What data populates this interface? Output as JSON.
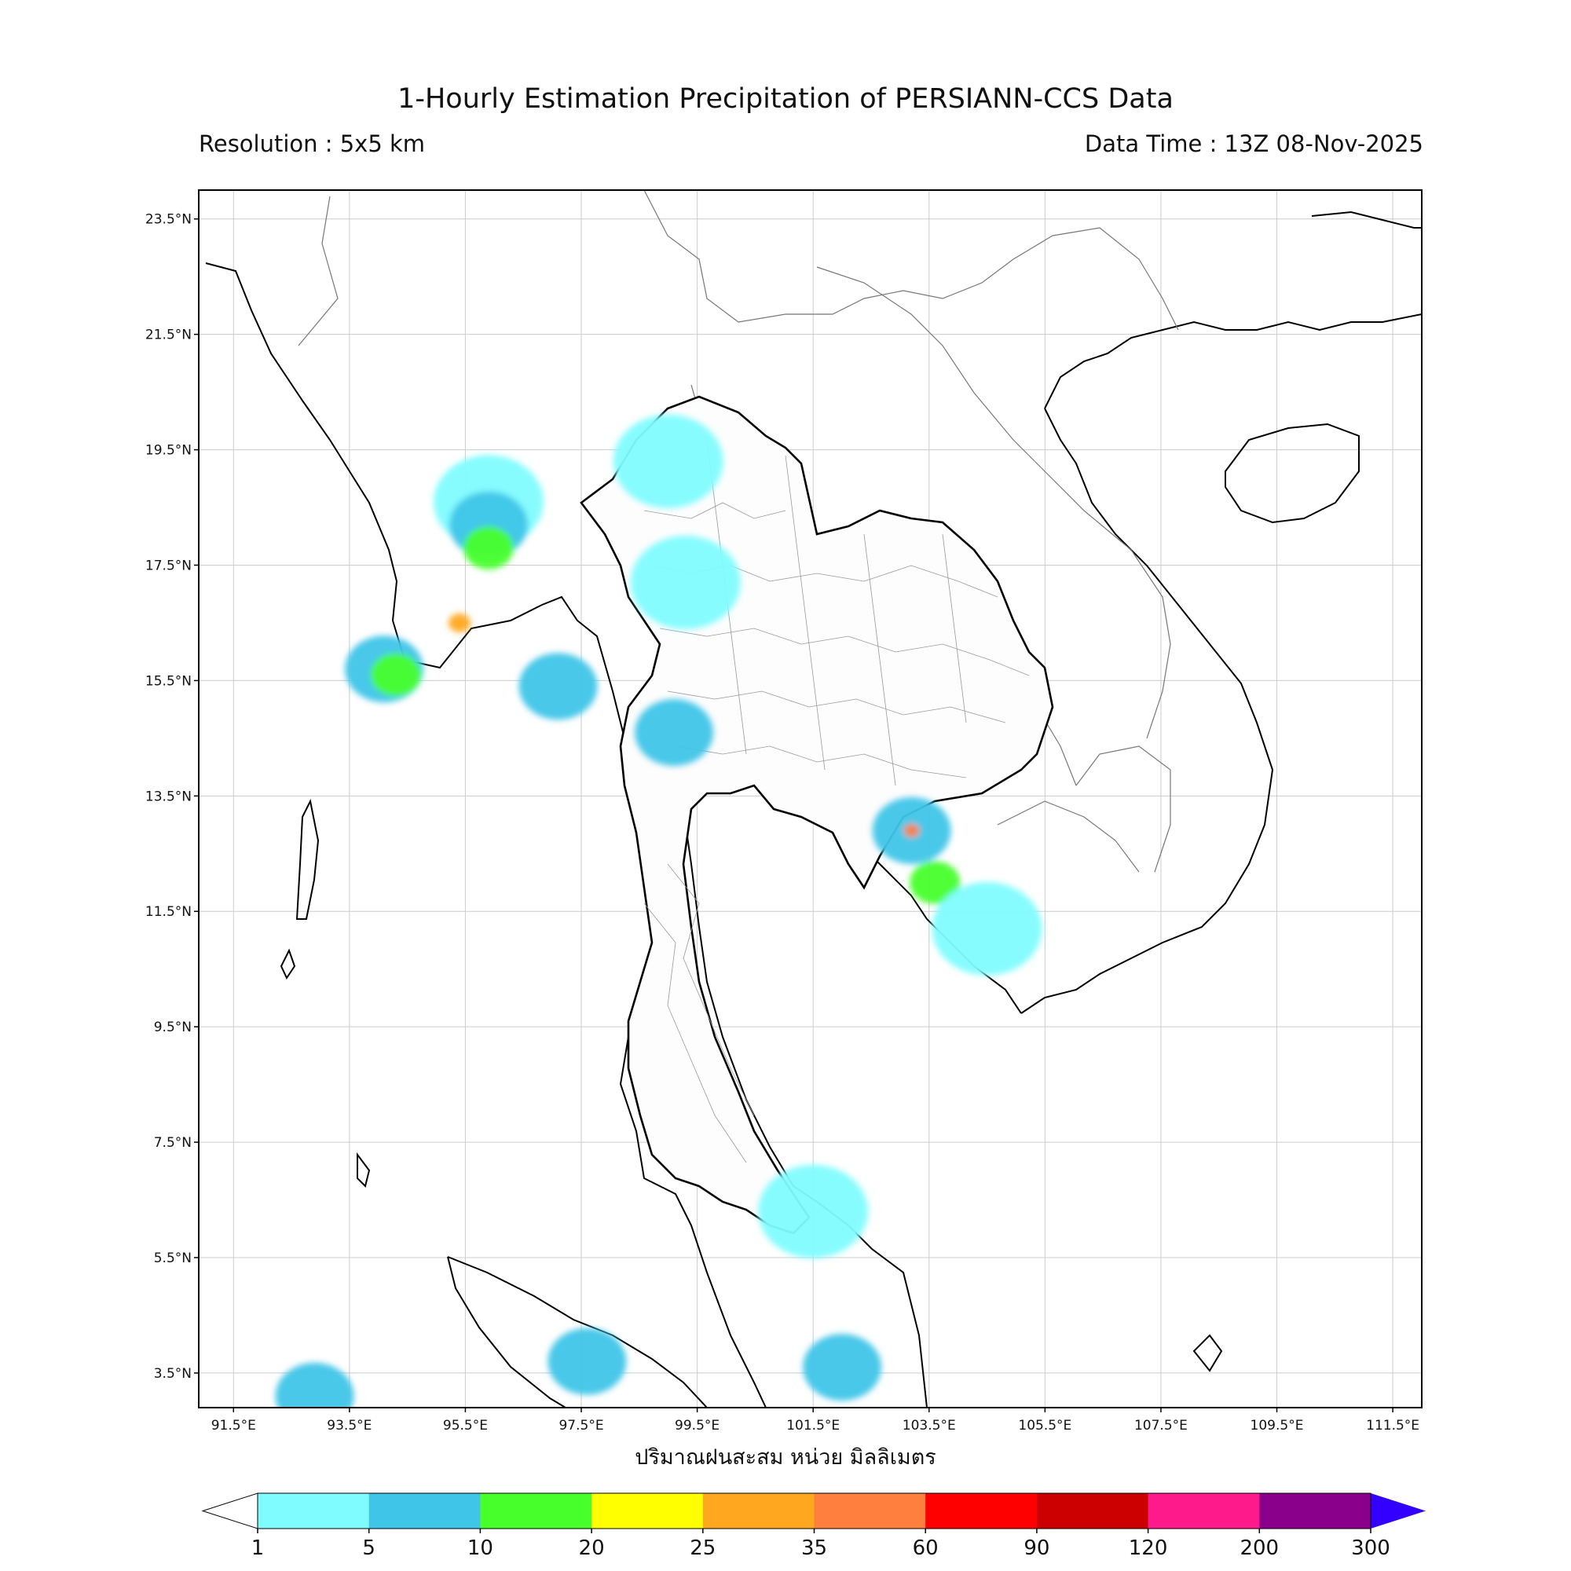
{
  "header": {
    "title": "1-Hourly Estimation Precipitation of PERSIANN-CCS Data",
    "resolution": "Resolution : 5x5 km",
    "data_time": "Data Time : 13Z 08-Nov-2025"
  },
  "map": {
    "lon_ticks": [
      "91.5°E",
      "93.5°E",
      "95.5°E",
      "97.5°E",
      "99.5°E",
      "101.5°E",
      "103.5°E",
      "105.5°E",
      "107.5°E",
      "109.5°E",
      "111.5°E"
    ],
    "lat_ticks": [
      "23.5°N",
      "21.5°N",
      "19.5°N",
      "17.5°N",
      "15.5°N",
      "13.5°N",
      "11.5°N",
      "9.5°N",
      "7.5°N",
      "5.5°N",
      "3.5°N"
    ],
    "lon_values": [
      91.5,
      93.5,
      95.5,
      97.5,
      99.5,
      101.5,
      103.5,
      105.5,
      107.5,
      109.5,
      111.5
    ],
    "lat_values": [
      23.5,
      21.5,
      19.5,
      17.5,
      15.5,
      13.5,
      11.5,
      9.5,
      7.5,
      5.5,
      3.5
    ],
    "lon_range": [
      90.9,
      112.0
    ],
    "lat_range": [
      2.9,
      24.0
    ],
    "xlabel": "ปริมาณฝนสะสม หน่วย มิลลิเมตร"
  },
  "colorbar": {
    "ticks": [
      "1",
      "5",
      "10",
      "20",
      "25",
      "35",
      "60",
      "90",
      "120",
      "200",
      "300"
    ],
    "colors": [
      "#7ffcff",
      "#3fc5e8",
      "#47ff2a",
      "#ffff00",
      "#ffa81f",
      "#ff7f3f",
      "#ff0000",
      "#cc0000",
      "#ff1a8c",
      "#8b008b"
    ],
    "over_color": "#3300ff",
    "under_color": "#ffffff"
  },
  "rain_cells": [
    {
      "lon": 95.9,
      "lat": 18.6,
      "level": 0
    },
    {
      "lon": 95.9,
      "lat": 18.2,
      "level": 1
    },
    {
      "lon": 95.9,
      "lat": 17.8,
      "level": 2
    },
    {
      "lon": 94.1,
      "lat": 15.7,
      "level": 1
    },
    {
      "lon": 94.3,
      "lat": 15.6,
      "level": 2
    },
    {
      "lon": 95.4,
      "lat": 16.5,
      "level": 4
    },
    {
      "lon": 97.1,
      "lat": 15.4,
      "level": 1
    },
    {
      "lon": 99.0,
      "lat": 19.3,
      "level": 0
    },
    {
      "lon": 99.1,
      "lat": 14.6,
      "level": 1
    },
    {
      "lon": 99.3,
      "lat": 17.2,
      "level": 0
    },
    {
      "lon": 103.2,
      "lat": 12.9,
      "level": 1
    },
    {
      "lon": 103.2,
      "lat": 12.9,
      "level": 5
    },
    {
      "lon": 103.6,
      "lat": 12.0,
      "level": 2
    },
    {
      "lon": 104.5,
      "lat": 11.2,
      "level": 0
    },
    {
      "lon": 101.5,
      "lat": 6.3,
      "level": 0
    },
    {
      "lon": 97.6,
      "lat": 3.7,
      "level": 1
    },
    {
      "lon": 102.0,
      "lat": 3.6,
      "level": 1
    },
    {
      "lon": 92.9,
      "lat": 3.1,
      "level": 1
    }
  ]
}
